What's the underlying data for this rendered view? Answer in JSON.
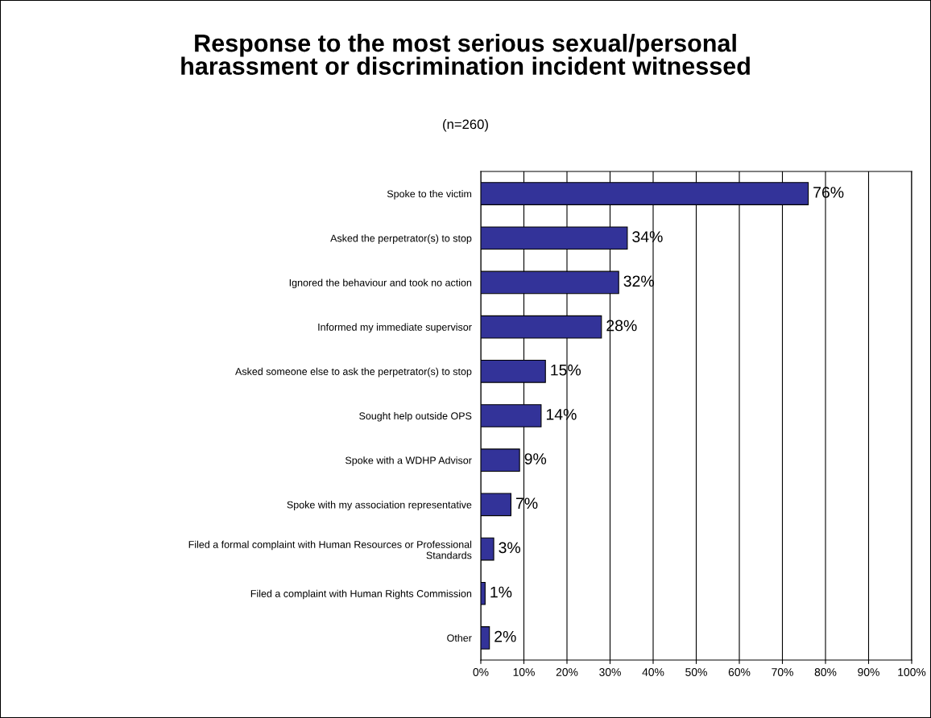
{
  "chart_data": {
    "type": "bar",
    "orientation": "horizontal",
    "title": "Response to the most serious sexual/personal\nharassment or discrimination incident witnessed",
    "subtitle": "(n=260)",
    "categories": [
      "Spoke to the victim",
      "Asked the perpetrator(s) to stop",
      "Ignored the behaviour and took no action",
      "Informed my immediate supervisor",
      "Asked someone else to ask the perpetrator(s) to stop",
      "Sought help outside OPS",
      "Spoke with a WDHP Advisor",
      "Spoke with my association representative",
      "Filed a formal complaint with Human Resources or Professional\nStandards",
      "Filed a complaint with Human Rights Commission",
      "Other"
    ],
    "values": [
      76,
      34,
      32,
      28,
      15,
      14,
      9,
      7,
      3,
      1,
      2
    ],
    "value_labels": [
      "76%",
      "34%",
      "32%",
      "28%",
      "15%",
      "14%",
      "9%",
      "7%",
      "3%",
      "1%",
      "2%"
    ],
    "color": "#333399",
    "xlim": [
      0,
      100
    ],
    "xticks": [
      {
        "value": 0,
        "label": "0%"
      },
      {
        "value": 10,
        "label": "10%"
      },
      {
        "value": 20,
        "label": "20%"
      },
      {
        "value": 30,
        "label": "30%"
      },
      {
        "value": 40,
        "label": "40%"
      },
      {
        "value": 50,
        "label": "50%"
      },
      {
        "value": 60,
        "label": "60%"
      },
      {
        "value": 70,
        "label": "70%"
      },
      {
        "value": 80,
        "label": "80%"
      },
      {
        "value": 90,
        "label": "90%"
      },
      {
        "value": 100,
        "label": "100%"
      }
    ],
    "grid": "x",
    "legend": false
  }
}
